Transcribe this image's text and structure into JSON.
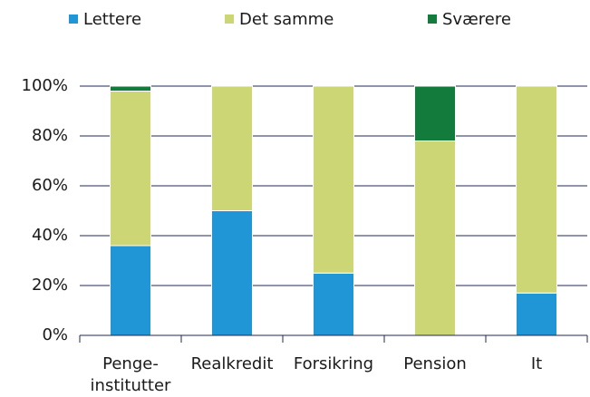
{
  "chart_data": {
    "type": "stacked_bar",
    "categories": [
      "Penge-\ninstitutter",
      "Realkredit",
      "Forsikring",
      "Pension",
      "It"
    ],
    "series": [
      {
        "name": "Lettere",
        "color": "#2196d6",
        "values": [
          36,
          50,
          25,
          0,
          17
        ]
      },
      {
        "name": "Det samme",
        "color": "#cdd675",
        "values": [
          62,
          50,
          75,
          78,
          83
        ]
      },
      {
        "name": "Sværere",
        "color": "#137c3d",
        "values": [
          2,
          0,
          0,
          22,
          0
        ]
      }
    ],
    "ylim": [
      0,
      100
    ],
    "yticks": [
      {
        "value": 0,
        "label": "0%"
      },
      {
        "value": 20,
        "label": "20%"
      },
      {
        "value": 40,
        "label": "40%"
      },
      {
        "value": 60,
        "label": "60%"
      },
      {
        "value": 80,
        "label": "80%"
      },
      {
        "value": 100,
        "label": "100%"
      }
    ],
    "grid": true,
    "legend": "top"
  }
}
